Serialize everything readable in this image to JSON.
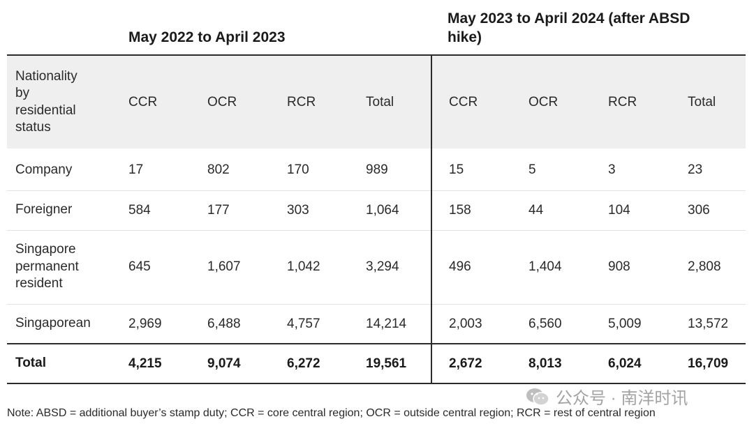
{
  "headers": {
    "period1": "May 2022 to April 2023",
    "period2": "May 2023 to April 2024 (after ABSD hike)"
  },
  "columns": {
    "label": "Nationality\nby\nresidential\nstatus",
    "period1": [
      "CCR",
      "OCR",
      "RCR",
      "Total"
    ],
    "period2": [
      "CCR",
      "OCR",
      "RCR",
      "Total"
    ]
  },
  "rows": [
    {
      "label": "Company",
      "period1": [
        "17",
        "802",
        "170",
        "989"
      ],
      "period2": [
        "15",
        "5",
        "3",
        "23"
      ]
    },
    {
      "label": "Foreigner",
      "period1": [
        "584",
        "177",
        "303",
        "1,064"
      ],
      "period2": [
        "158",
        "44",
        "104",
        "306"
      ]
    },
    {
      "label": "Singapore\npermanent\nresident",
      "period1": [
        "645",
        "1,607",
        "1,042",
        "3,294"
      ],
      "period2": [
        "496",
        "1,404",
        "908",
        "2,808"
      ]
    },
    {
      "label": "Singaporean",
      "period1": [
        "2,969",
        "6,488",
        "4,757",
        "14,214"
      ],
      "period2": [
        "2,003",
        "6,560",
        "5,009",
        "13,572"
      ]
    }
  ],
  "totals": {
    "label": "Total",
    "period1": [
      "4,215",
      "9,074",
      "6,272",
      "19,561"
    ],
    "period2": [
      "2,672",
      "8,013",
      "6,024",
      "16,709"
    ]
  },
  "note": "Note: ABSD = additional buyer’s stamp duty; CCR = core central region; OCR = outside central region; RCR = rest of central region",
  "watermark": {
    "text": "公众号 · 南洋时讯",
    "icon": "wechat-icon"
  }
}
